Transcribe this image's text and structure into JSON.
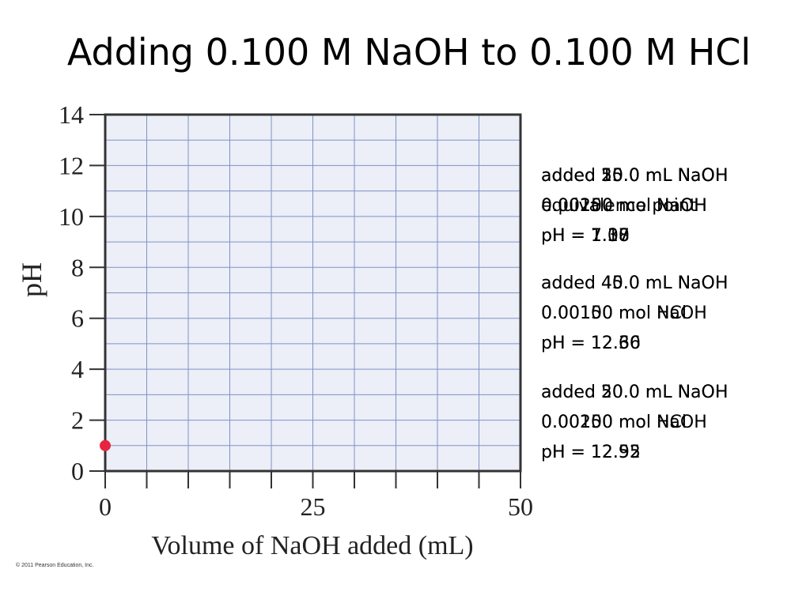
{
  "title": "Adding 0.100 M NaOH to 0.100 M HCl",
  "copyright": "© 2011 Pearson Education, Inc.",
  "colors": {
    "plot_background": "#eceef8",
    "grid": "#7f93c4",
    "frame": "#333333",
    "point": "#e8253f"
  },
  "chart_data": {
    "type": "scatter",
    "title": "",
    "xlabel": "Volume of NaOH added (mL)",
    "ylabel": "pH",
    "xlim": [
      0,
      50
    ],
    "ylim": [
      0,
      14
    ],
    "x_ticks": [
      0,
      25,
      50
    ],
    "x_tick_labels": [
      "0",
      "25",
      "50"
    ],
    "y_ticks": [
      0,
      2,
      4,
      6,
      8,
      10,
      12,
      14
    ],
    "y_tick_labels": [
      "0",
      "2",
      "4",
      "6",
      "8",
      "10",
      "12",
      "14"
    ],
    "grid": true,
    "series": [
      {
        "points": [
          {
            "x": 0,
            "y": 1.0
          }
        ]
      }
    ]
  },
  "annotations": [
    {
      "stack": [
        [
          "added 10.0 mL NaOH",
          "0.00100 mol NaOH",
          "pH = 1.18"
        ],
        [
          "added 25.0 mL NaOH",
          "0.00250 mol NaOH",
          "pH = 1.37"
        ],
        [
          "added 50.0 mL NaOH",
          "equivalence point",
          "pH = 7.00"
        ]
      ]
    },
    {
      "stack": [
        [
          "added 40.0 mL NaOH",
          "0.00150 mol NaOH",
          "pH = 12.36"
        ],
        [
          "added 45.0 mL NaOH",
          "0.00100 mol HCl",
          "pH = 12.60"
        ]
      ]
    },
    {
      "stack": [
        [
          "added 50.0 mL NaOH",
          "0.00250 mol NaOH",
          "pH = 12.52"
        ],
        [
          "added 20.0 mL NaOH",
          "0.00100 mol HCl",
          "pH = 12.95"
        ]
      ]
    }
  ]
}
